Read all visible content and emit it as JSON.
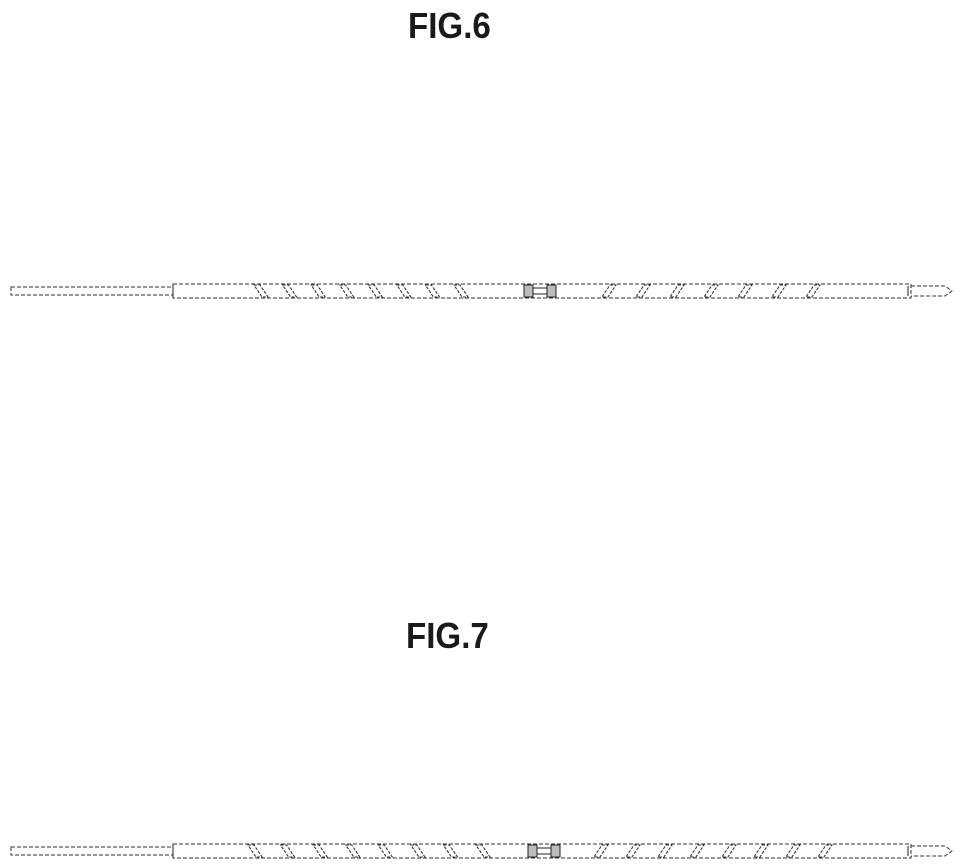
{
  "figures": [
    {
      "id": "fig6",
      "label": "FIG.6",
      "slash_direction": "mixed",
      "left_slash_count": 8,
      "right_slash_count": 7
    },
    {
      "id": "fig7",
      "label": "FIG.7",
      "slash_direction": "mixed",
      "left_slash_count": 8,
      "right_slash_count": 8
    }
  ],
  "colors": {
    "line": "#333333",
    "connector_fill": "#bdbdbd"
  }
}
